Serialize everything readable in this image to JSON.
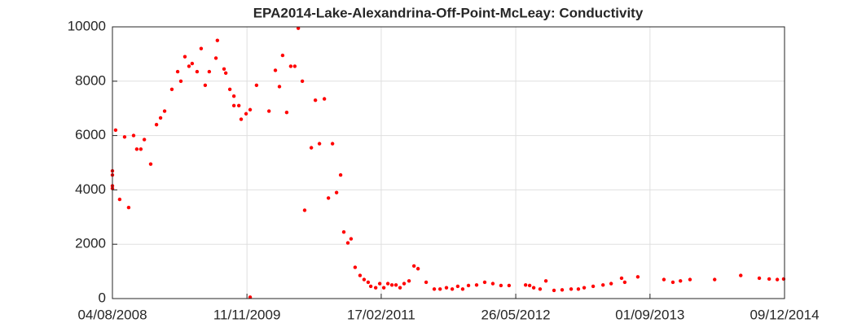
{
  "chart_data": {
    "type": "scatter",
    "title": "EPA2014-Lake-Alexandrina-Off-Point-McLeay: Conductivity",
    "color": "#ff0000",
    "grid": true,
    "xlim": [
      "2008-08-04",
      "2014-12-09"
    ],
    "xticks": [
      {
        "value": "2008-08-04",
        "label": "04/08/2008"
      },
      {
        "value": "2009-11-11",
        "label": "11/11/2009"
      },
      {
        "value": "2011-02-17",
        "label": "17/02/2011"
      },
      {
        "value": "2012-05-26",
        "label": "26/05/2012"
      },
      {
        "value": "2013-09-01",
        "label": "01/09/2013"
      },
      {
        "value": "2014-12-09",
        "label": "09/12/2014"
      }
    ],
    "ylim": [
      0,
      10000
    ],
    "yticks": [
      0,
      2000,
      4000,
      6000,
      8000,
      10000
    ],
    "x": [
      "2008-08-04",
      "2008-08-04",
      "2008-08-04",
      "2008-08-04",
      "2008-08-15",
      "2008-08-29",
      "2008-09-15",
      "2008-09-29",
      "2008-10-16",
      "2008-10-27",
      "2008-11-10",
      "2008-11-22",
      "2008-12-14",
      "2009-01-03",
      "2009-01-17",
      "2009-01-31",
      "2009-02-25",
      "2009-03-17",
      "2009-03-28",
      "2009-04-11",
      "2009-04-25",
      "2009-05-06",
      "2009-05-23",
      "2009-06-06",
      "2009-06-20",
      "2009-07-04",
      "2009-07-27",
      "2009-08-01",
      "2009-08-24",
      "2009-08-30",
      "2009-09-13",
      "2009-09-27",
      "2009-09-27",
      "2009-10-14",
      "2009-10-22",
      "2009-11-08",
      "2009-11-22",
      "2009-11-22",
      "2009-12-14",
      "2010-01-26",
      "2010-02-17",
      "2010-03-03",
      "2010-03-14",
      "2010-03-28",
      "2010-04-11",
      "2010-04-25",
      "2010-05-07",
      "2010-05-21",
      "2010-05-29",
      "2010-06-21",
      "2010-07-05",
      "2010-07-19",
      "2010-08-05",
      "2010-08-19",
      "2010-09-02",
      "2010-09-16",
      "2010-09-30",
      "2010-10-11",
      "2010-10-25",
      "2010-11-05",
      "2010-11-19",
      "2010-12-06",
      "2010-12-20",
      "2011-01-03",
      "2011-01-12",
      "2011-01-29",
      "2011-02-12",
      "2011-02-26",
      "2011-03-12",
      "2011-03-26",
      "2011-04-09",
      "2011-04-23",
      "2011-05-07",
      "2011-05-24",
      "2011-06-10",
      "2011-06-24",
      "2011-07-22",
      "2011-08-19",
      "2011-09-08",
      "2011-09-30",
      "2011-10-20",
      "2011-11-08",
      "2011-11-25",
      "2011-12-15",
      "2012-01-12",
      "2012-02-09",
      "2012-03-08",
      "2012-04-05",
      "2012-05-03",
      "2012-06-29",
      "2012-07-13",
      "2012-07-27",
      "2012-08-18",
      "2012-09-07",
      "2012-10-05",
      "2012-11-02",
      "2012-12-03",
      "2012-12-28",
      "2013-01-17",
      "2013-02-17",
      "2013-03-23",
      "2013-04-20",
      "2013-05-26",
      "2013-06-06",
      "2013-07-21",
      "2013-10-19",
      "2013-11-19",
      "2013-12-15",
      "2014-01-17",
      "2014-04-12",
      "2014-07-11",
      "2014-09-13",
      "2014-10-17",
      "2014-11-14",
      "2014-12-06"
    ],
    "values": [
      4700,
      4550,
      4150,
      4050,
      6200,
      3650,
      5950,
      3350,
      6000,
      5500,
      5500,
      5850,
      4950,
      6400,
      6650,
      6900,
      7700,
      8350,
      8000,
      8900,
      8550,
      8650,
      8350,
      9200,
      7850,
      8350,
      8850,
      9500,
      8450,
      8300,
      7700,
      7450,
      7100,
      7100,
      6600,
      6800,
      50,
      6950,
      7850,
      6900,
      8400,
      7800,
      8950,
      6850,
      8550,
      8550,
      9950,
      8000,
      3250,
      5550,
      7300,
      5700,
      7350,
      3700,
      5700,
      3900,
      4550,
      2450,
      2050,
      2200,
      1150,
      850,
      700,
      600,
      450,
      400,
      550,
      400,
      550,
      500,
      500,
      400,
      550,
      650,
      1200,
      1100,
      600,
      350,
      350,
      400,
      350,
      450,
      350,
      480,
      500,
      600,
      550,
      480,
      480,
      500,
      480,
      400,
      350,
      650,
      300,
      320,
      350,
      350,
      400,
      450,
      500,
      550,
      750,
      600,
      800,
      700,
      600,
      650,
      700,
      700,
      850,
      750,
      720,
      700,
      720
    ]
  }
}
